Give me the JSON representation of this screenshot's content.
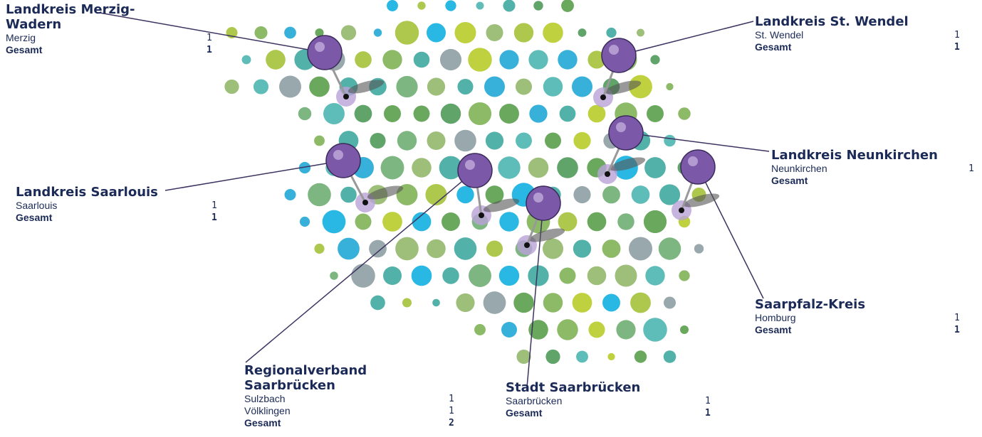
{
  "regions": [
    {
      "title": "Landkreis Merzig-Wadern",
      "rows": [
        {
          "name": "Merzig",
          "count": 1
        }
      ],
      "total_label": "Gesamt",
      "total": 1
    },
    {
      "title": "Landkreis St. Wendel",
      "rows": [
        {
          "name": "St. Wendel",
          "count": 1
        }
      ],
      "total_label": "Gesamt",
      "total": 1
    },
    {
      "title": "Landkreis Neunkirchen",
      "rows": [
        {
          "name": "Neunkirchen",
          "count": 1
        }
      ],
      "total_label": "Gesamt"
    },
    {
      "title": "Landkreis Saarlouis",
      "rows": [
        {
          "name": "Saarlouis",
          "count": 1
        }
      ],
      "total_label": "Gesamt",
      "total": 1
    },
    {
      "title": "Saarpfalz-Kreis",
      "rows": [
        {
          "name": "Homburg",
          "count": 1
        }
      ],
      "total_label": "Gesamt",
      "total": 1
    },
    {
      "title": "Regionalverband Saarbrücken",
      "rows": [
        {
          "name": "Sulzbach",
          "count": 1
        },
        {
          "name": "Völklingen",
          "count": 1
        }
      ],
      "total_label": "Gesamt",
      "total": 2
    },
    {
      "title": "Stadt Saarbrücken",
      "rows": [
        {
          "name": "Saarbrücken",
          "count": 1
        }
      ],
      "total_label": "Gesamt",
      "total": 1
    }
  ]
}
